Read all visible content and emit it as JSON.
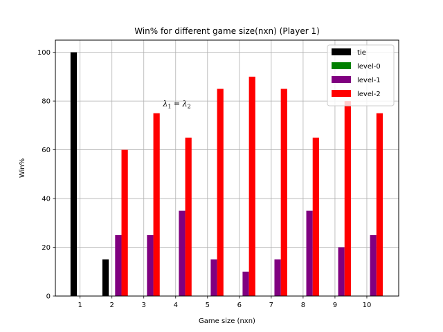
{
  "chart_data": {
    "type": "bar",
    "title": "Win% for different game size(nxn) (Player 1)",
    "xlabel": "Game size (nxn)",
    "ylabel": "Win%",
    "categories": [
      "1",
      "2",
      "3",
      "4",
      "5",
      "6",
      "7",
      "8",
      "9",
      "10"
    ],
    "ylim": [
      0,
      105
    ],
    "yticks": [
      0,
      20,
      40,
      60,
      80,
      100
    ],
    "grid": true,
    "legend_position": "top-right",
    "series": [
      {
        "name": "tie",
        "color": "#000000",
        "values": [
          100,
          15,
          0,
          0,
          0,
          0,
          0,
          0,
          0,
          0
        ]
      },
      {
        "name": "level-0",
        "color": "#008000",
        "values": [
          0,
          0,
          0,
          0,
          0,
          0,
          0,
          0,
          0,
          0
        ]
      },
      {
        "name": "level-1",
        "color": "#800080",
        "values": [
          0,
          25,
          25,
          35,
          15,
          10,
          15,
          35,
          20,
          25
        ]
      },
      {
        "name": "level-2",
        "color": "#ff0000",
        "values": [
          0,
          60,
          75,
          65,
          85,
          90,
          85,
          65,
          80,
          75
        ]
      }
    ],
    "annotation": {
      "text": "λ1 = λ2",
      "base1": "λ",
      "sub1": "1",
      "eq": " = ",
      "base2": "λ",
      "sub2": "2",
      "x": 3.6,
      "y": 79
    }
  }
}
